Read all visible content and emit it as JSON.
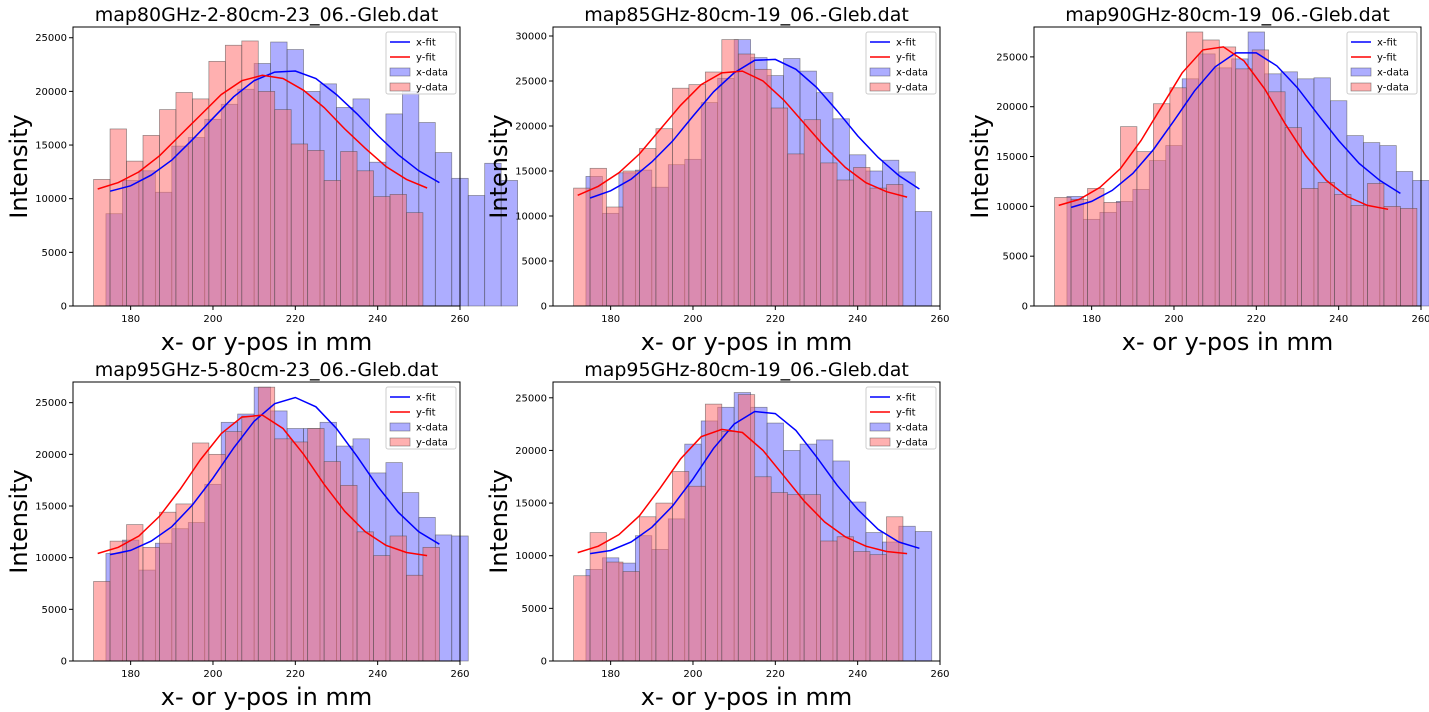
{
  "legend": {
    "x_fit": "x-fit",
    "y_fit": "y-fit",
    "x_data": "x-data",
    "y_data": "y-data"
  },
  "colors": {
    "x_fit": "#0000ff",
    "y_fit": "#ff0000",
    "x_data": "#6a6aff",
    "y_data": "#ff7070",
    "edge": "#444444"
  },
  "chart_data": [
    {
      "type": "bar",
      "title": "map80GHz-2-80cm-23_06.-Gleb.dat",
      "xlabel": "x- or y-pos in mm",
      "ylabel": "Intensity",
      "xlim": [
        166,
        260
      ],
      "ylim": [
        0,
        26000
      ],
      "xticks": [
        180,
        200,
        220,
        240,
        260
      ],
      "yticks": [
        0,
        5000,
        10000,
        15000,
        20000,
        25000
      ],
      "legend_position": "top-right",
      "bin_width": 4,
      "x_data": {
        "start": 174,
        "values": [
          8600,
          11700,
          12600,
          10600,
          14900,
          15700,
          17400,
          18800,
          20200,
          22600,
          24600,
          23900,
          20000,
          20700,
          18500,
          19300,
          13400,
          17900,
          20000,
          17100,
          14300,
          11900,
          10300,
          13300,
          11700
        ]
      },
      "y_data": {
        "start": 171,
        "values": [
          11800,
          16500,
          13500,
          15900,
          18300,
          19900,
          19300,
          22800,
          24300,
          24700,
          20000,
          18300,
          15100,
          14500,
          11700,
          14400,
          12600,
          10200,
          10400,
          8700
        ]
      },
      "x_fit": {
        "x": [
          175,
          180,
          185,
          190,
          195,
          200,
          205,
          210,
          215,
          220,
          225,
          230,
          235,
          240,
          245,
          250,
          255
        ],
        "y": [
          10700,
          11200,
          12200,
          13600,
          15500,
          17500,
          19500,
          21000,
          21800,
          21900,
          21200,
          19700,
          17900,
          15900,
          14100,
          12600,
          11500
        ]
      },
      "y_fit": {
        "x": [
          172,
          177,
          182,
          187,
          192,
          197,
          202,
          207,
          212,
          217,
          222,
          227,
          232,
          237,
          242,
          247,
          252
        ],
        "y": [
          10900,
          11500,
          12500,
          14000,
          15900,
          17800,
          19700,
          21000,
          21500,
          21200,
          20100,
          18500,
          16500,
          14700,
          13000,
          11800,
          11000
        ]
      }
    },
    {
      "type": "bar",
      "title": "map85GHz-80cm-19_06.-Gleb.dat",
      "xlabel": "x- or y-pos in mm",
      "ylabel": "Intensity",
      "xlim": [
        166,
        260
      ],
      "ylim": [
        0,
        31000
      ],
      "xticks": [
        180,
        200,
        220,
        240,
        260
      ],
      "yticks": [
        0,
        5000,
        10000,
        15000,
        20000,
        25000,
        30000
      ],
      "legend_position": "top-right",
      "bin_width": 4,
      "x_data": {
        "start": 174,
        "values": [
          14400,
          10300,
          14800,
          15100,
          13200,
          15700,
          16300,
          22600,
          25300,
          29600,
          27600,
          25600,
          27500,
          26100,
          23700,
          20800,
          16800,
          15000,
          16200,
          14900,
          10500
        ]
      },
      "y_data": {
        "start": 171,
        "values": [
          13100,
          15300,
          11000,
          15000,
          17500,
          19700,
          24200,
          24600,
          26000,
          29600,
          28000,
          26300,
          22000,
          16900,
          20700,
          15900,
          14000,
          15400,
          13100,
          13500
        ]
      },
      "x_fit": {
        "x": [
          175,
          180,
          185,
          190,
          195,
          200,
          205,
          210,
          215,
          220,
          225,
          230,
          235,
          240,
          245,
          250,
          255
        ],
        "y": [
          12000,
          12800,
          14100,
          16000,
          18300,
          21100,
          23800,
          25900,
          27300,
          27400,
          26300,
          24300,
          21700,
          18900,
          16500,
          14500,
          13000
        ]
      },
      "y_fit": {
        "x": [
          172,
          177,
          182,
          187,
          192,
          197,
          202,
          207,
          212,
          217,
          222,
          227,
          232,
          237,
          242,
          247,
          252
        ],
        "y": [
          12300,
          13300,
          14800,
          16900,
          19600,
          22300,
          24600,
          25900,
          26100,
          25000,
          22900,
          20300,
          17700,
          15400,
          13700,
          12700,
          12100
        ]
      }
    },
    {
      "type": "bar",
      "title": "map90GHz-80cm-19_06.-Gleb.dat",
      "xlabel": "x- or y-pos in mm",
      "ylabel": "Intensity",
      "xlim": [
        166,
        260
      ],
      "ylim": [
        0,
        28000
      ],
      "xticks": [
        180,
        200,
        220,
        240,
        260
      ],
      "yticks": [
        0,
        5000,
        10000,
        15000,
        20000,
        25000
      ],
      "legend_position": "top-right",
      "bin_width": 4,
      "x_data": {
        "start": 174,
        "values": [
          11000,
          8700,
          9400,
          10500,
          11700,
          14600,
          16100,
          22800,
          25300,
          23900,
          24800,
          27500,
          23300,
          23500,
          22800,
          22900,
          20600,
          17100,
          16400,
          16100,
          13500,
          12600
        ]
      },
      "y_data": {
        "start": 171,
        "values": [
          10900,
          10700,
          11800,
          10400,
          18000,
          15500,
          20300,
          21900,
          27500,
          26700,
          26000,
          23800,
          25700,
          21500,
          17900,
          11800,
          12400,
          11200,
          10100,
          12300,
          10000,
          9800
        ]
      },
      "x_fit": {
        "x": [
          175,
          180,
          185,
          190,
          195,
          200,
          205,
          210,
          215,
          220,
          225,
          230,
          235,
          240,
          245,
          250,
          255
        ],
        "y": [
          9900,
          10500,
          11600,
          13300,
          15700,
          18600,
          21600,
          24000,
          25400,
          25400,
          24100,
          21900,
          19200,
          16600,
          14300,
          12600,
          11300
        ]
      },
      "y_fit": {
        "x": [
          172,
          177,
          182,
          187,
          192,
          197,
          202,
          207,
          212,
          217,
          222,
          227,
          232,
          237,
          242,
          247,
          252
        ],
        "y": [
          10100,
          10700,
          11900,
          13800,
          16600,
          20000,
          23400,
          25700,
          26000,
          24600,
          21800,
          18300,
          15100,
          12600,
          11000,
          10100,
          9700
        ]
      }
    },
    {
      "type": "bar",
      "title": "map95GHz-5-80cm-23_06.-Gleb.dat",
      "xlabel": "x- or y-pos in mm",
      "ylabel": "Intensity",
      "xlim": [
        166,
        260
      ],
      "ylim": [
        0,
        27000
      ],
      "xticks": [
        180,
        200,
        220,
        240,
        260
      ],
      "yticks": [
        0,
        5000,
        10000,
        15000,
        20000,
        25000
      ],
      "legend_position": "top-right",
      "bin_width": 4,
      "x_data": {
        "start": 174,
        "values": [
          10400,
          11700,
          8800,
          11400,
          12800,
          13400,
          17100,
          23100,
          23900,
          26500,
          24200,
          22500,
          22500,
          23100,
          20800,
          21500,
          18200,
          19200,
          16300,
          13900,
          12200,
          12100
        ]
      },
      "y_data": {
        "start": 171,
        "values": [
          7700,
          11600,
          13200,
          11000,
          14400,
          15200,
          21100,
          20000,
          22200,
          23700,
          26500,
          21500,
          21200,
          22500,
          19300,
          17000,
          12500,
          10200,
          12100,
          8300,
          11000
        ]
      },
      "x_fit": {
        "x": [
          175,
          180,
          185,
          190,
          195,
          200,
          205,
          210,
          215,
          220,
          225,
          230,
          235,
          240,
          245,
          250,
          255
        ],
        "y": [
          10300,
          10700,
          11600,
          13000,
          15100,
          17700,
          20600,
          23200,
          24900,
          25500,
          24600,
          22500,
          19800,
          16900,
          14400,
          12500,
          11300
        ]
      },
      "y_fit": {
        "x": [
          172,
          177,
          182,
          187,
          192,
          197,
          202,
          207,
          212,
          217,
          222,
          227,
          232,
          237,
          242,
          247,
          252
        ],
        "y": [
          10400,
          11000,
          12100,
          14000,
          16600,
          19500,
          22000,
          23600,
          23800,
          22500,
          20000,
          17100,
          14500,
          12500,
          11200,
          10500,
          10200
        ]
      }
    },
    {
      "type": "bar",
      "title": "map95GHz-80cm-19_06.-Gleb.dat",
      "xlabel": "x- or y-pos in mm",
      "ylabel": "Intensity",
      "xlim": [
        166,
        260
      ],
      "ylim": [
        0,
        26500
      ],
      "xticks": [
        180,
        200,
        220,
        240,
        260
      ],
      "yticks": [
        0,
        5000,
        10000,
        15000,
        20000,
        25000
      ],
      "legend_position": "top-right",
      "bin_width": 4,
      "x_data": {
        "start": 174,
        "values": [
          8700,
          9800,
          9300,
          11900,
          10600,
          13500,
          20600,
          22800,
          24100,
          25500,
          24100,
          22600,
          20000,
          20600,
          21000,
          19000,
          15100,
          12200,
          11300,
          12800,
          12300
        ]
      },
      "y_data": {
        "start": 171,
        "values": [
          8100,
          12200,
          9400,
          8500,
          13700,
          15000,
          18000,
          16600,
          24400,
          21800,
          25300,
          17500,
          16000,
          15800,
          15800,
          11400,
          11800,
          10400,
          10100,
          13700
        ]
      },
      "x_fit": {
        "x": [
          175,
          180,
          185,
          190,
          195,
          200,
          205,
          210,
          215,
          220,
          225,
          230,
          235,
          240,
          245,
          250,
          255
        ],
        "y": [
          10200,
          10500,
          11300,
          12700,
          14700,
          17300,
          20200,
          22500,
          23700,
          23500,
          21900,
          19400,
          16700,
          14400,
          12500,
          11300,
          10700
        ]
      },
      "y_fit": {
        "x": [
          172,
          177,
          182,
          187,
          192,
          197,
          202,
          207,
          212,
          217,
          222,
          227,
          232,
          237,
          242,
          247,
          252
        ],
        "y": [
          10300,
          10900,
          12000,
          13800,
          16400,
          19200,
          21300,
          22000,
          21700,
          20000,
          17600,
          15200,
          13200,
          11800,
          10900,
          10400,
          10200
        ]
      }
    }
  ]
}
